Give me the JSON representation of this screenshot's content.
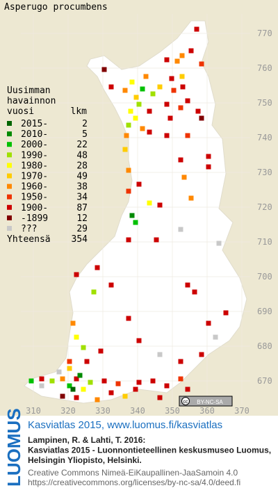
{
  "title": "Asperugo procumbens",
  "legend": {
    "heading": [
      "Uusimman",
      "havainnon",
      "vuosi"
    ],
    "count_heading": "lkm",
    "items": [
      {
        "label": "2015-",
        "count": 2,
        "color": "#006400"
      },
      {
        "label": "2010-",
        "count": 5,
        "color": "#008a00"
      },
      {
        "label": "2000-",
        "count": 22,
        "color": "#00c000"
      },
      {
        "label": "1990-",
        "count": 48,
        "color": "#a0e000"
      },
      {
        "label": "1980-",
        "count": 28,
        "color": "#ffff00"
      },
      {
        "label": "1970-",
        "count": 49,
        "color": "#ffcc00"
      },
      {
        "label": "1960-",
        "count": 38,
        "color": "#ff8800"
      },
      {
        "label": "1950-",
        "count": 34,
        "color": "#ee3300"
      },
      {
        "label": "1900-",
        "count": 87,
        "color": "#cc0000"
      },
      {
        "label": "-1899",
        "count": 12,
        "color": "#800000"
      },
      {
        "label": "???",
        "count": 29,
        "color": "#c8c8c8"
      }
    ],
    "total_label": "Yhteensä",
    "total": 354
  },
  "grid": {
    "x_labels": [
      310,
      320,
      330,
      340,
      350,
      360,
      370
    ],
    "y_labels": [
      770,
      760,
      750,
      740,
      730,
      720,
      710,
      700,
      690,
      680,
      670
    ]
  },
  "badge": "BY-NC-SA",
  "footer": {
    "logo": "LUOMUS",
    "link": "Kasviatlas 2015, www.luomus.fi/kasviatlas",
    "citation": [
      "Lampinen, R. & Lahti, T. 2016:",
      "Kasviatlas 2015 - Luonnontieteellinen keskusmuseo Luomus,",
      "Helsingin Yliopisto, Helsinki."
    ],
    "license": [
      "Creative Commons Nimeä-EiKaupallinen-JaaSamoin 4.0",
      "https://creativecommons.org/licenses/by-nc-sa/4.0/deed.fi"
    ]
  }
}
